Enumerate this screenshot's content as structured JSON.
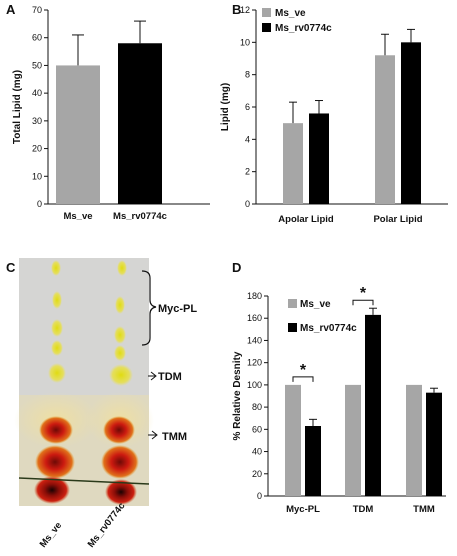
{
  "panels": {
    "A": {
      "label": "A"
    },
    "B": {
      "label": "B"
    },
    "C": {
      "label": "C"
    },
    "D": {
      "label": "D"
    }
  },
  "colors": {
    "ms_ve": "#a6a6a6",
    "ms_rv0774c": "#000000",
    "tlc_background": "#d4d4d2",
    "tlc_red": "#cc1a10",
    "tlc_yellow": "#e8e020"
  },
  "chart_data": [
    {
      "panel": "A",
      "type": "bar",
      "categories": [
        "Ms_ve",
        "Ms_rv0774c"
      ],
      "values": [
        50,
        58
      ],
      "errors": [
        11,
        8
      ],
      "xlabel": "",
      "ylabel": "Total Lipid (mg)",
      "ylim": [
        0,
        70
      ],
      "yticks": [
        0,
        10,
        20,
        30,
        40,
        50,
        60,
        70
      ],
      "bar_colors": [
        "#a6a6a6",
        "#000000"
      ]
    },
    {
      "panel": "B",
      "type": "bar",
      "categories": [
        "Apolar Lipid",
        "Polar Lipid"
      ],
      "series": [
        {
          "name": "Ms_ve",
          "values": [
            5.0,
            9.2
          ],
          "errors": [
            1.3,
            1.3
          ]
        },
        {
          "name": "Ms_rv0774c",
          "values": [
            5.6,
            10.0
          ],
          "errors": [
            0.8,
            0.8
          ]
        }
      ],
      "xlabel": "",
      "ylabel": "Lipid (mg)",
      "ylim": [
        0,
        12
      ],
      "yticks": [
        0,
        2,
        4,
        6,
        8,
        10,
        12
      ],
      "legend": "top-left"
    },
    {
      "panel": "D",
      "type": "bar",
      "categories": [
        "Myc-PL",
        "TDM",
        "TMM"
      ],
      "series": [
        {
          "name": "Ms_ve",
          "values": [
            100,
            100,
            100
          ],
          "errors": [
            0,
            0,
            0
          ]
        },
        {
          "name": "Ms_rv0774c",
          "values": [
            63,
            163,
            93
          ],
          "errors": [
            6,
            6,
            4
          ]
        }
      ],
      "xlabel": "",
      "ylabel": "% Relative Desnity",
      "ylim": [
        0,
        180
      ],
      "yticks": [
        0,
        20,
        40,
        60,
        80,
        100,
        120,
        140,
        160,
        180
      ],
      "legend": "top-left",
      "significance": [
        {
          "category": "Myc-PL",
          "mark": "*"
        },
        {
          "category": "TDM",
          "mark": "*"
        }
      ]
    }
  ],
  "tlc": {
    "lane_labels": [
      "Ms_ve",
      "Ms_rv0774c"
    ],
    "annotations": [
      "Myc-PL",
      "TDM",
      "TMM"
    ]
  }
}
